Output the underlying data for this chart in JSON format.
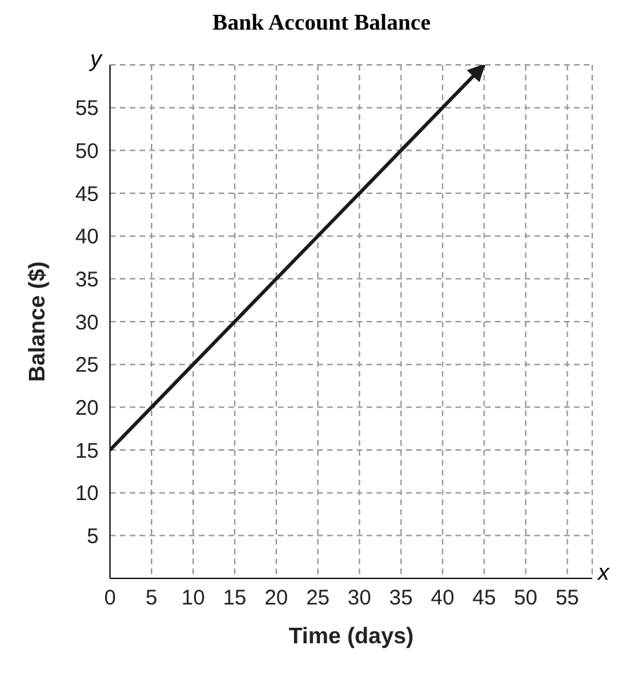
{
  "chart_data": {
    "type": "line",
    "title": "Bank Account Balance",
    "xlabel": "Time (days)",
    "ylabel": "Balance ($)",
    "x": [
      0,
      45
    ],
    "series": [
      {
        "color": "#1a1a1a",
        "values": [
          15,
          60
        ]
      }
    ],
    "xlim": [
      0,
      58
    ],
    "ylim": [
      0,
      60
    ],
    "xticks": [
      0,
      5,
      10,
      15,
      20,
      25,
      30,
      35,
      40,
      45,
      50,
      55
    ],
    "yticks": [
      {
        "value": 0,
        "label": null
      },
      5,
      10,
      15,
      20,
      25,
      30,
      35,
      40,
      45,
      50,
      55
    ],
    "annotations": [
      "x",
      "y"
    ],
    "grid": true,
    "marker": "none",
    "line_style": "solid",
    "legend": false
  }
}
